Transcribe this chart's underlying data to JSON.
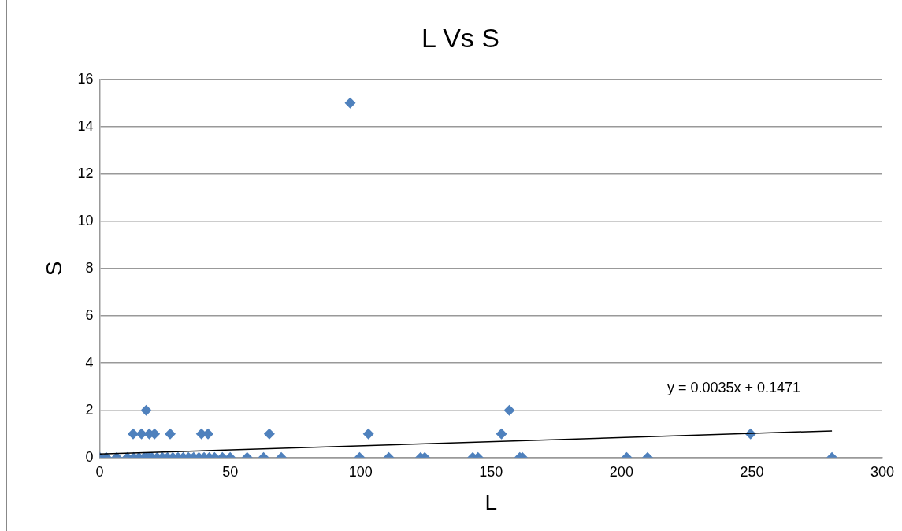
{
  "chart_data": {
    "type": "scatter",
    "title": "L Vs S",
    "xlabel": "L",
    "ylabel": "S",
    "xlim": [
      0,
      300
    ],
    "xticks": [
      0,
      50,
      100,
      150,
      200,
      250,
      300
    ],
    "ylim": [
      0,
      16
    ],
    "yticks": [
      0,
      2,
      4,
      6,
      8,
      10,
      12,
      14,
      16
    ],
    "grid": "y",
    "legend": false,
    "marker": "diamond",
    "series": [
      {
        "color": "#4f81bd",
        "x": [
          12.8,
          16,
          19,
          21,
          27,
          39,
          41.5,
          65,
          103,
          154,
          249.5,
          17.8,
          157,
          96,
          0,
          2.5,
          6.5,
          10.6,
          13,
          15,
          17,
          18,
          19,
          20,
          22,
          24,
          26,
          28,
          30,
          32,
          34,
          36,
          38,
          40,
          42,
          44,
          47,
          50,
          56.5,
          62.8,
          69.6,
          99.6,
          110.8,
          123,
          124.6,
          143,
          145,
          161,
          162,
          202,
          210,
          280.7
        ],
        "values": [
          1,
          1,
          1,
          1,
          1,
          1,
          1,
          1,
          1,
          1,
          1,
          2,
          2,
          15,
          0,
          0,
          0,
          0,
          0,
          0,
          0,
          0,
          0,
          0,
          0,
          0,
          0,
          0,
          0,
          0,
          0,
          0,
          0,
          0,
          0,
          0,
          0,
          0,
          0,
          0,
          0,
          0,
          0,
          0,
          0,
          0,
          0,
          0,
          0,
          0,
          0,
          0
        ]
      },
      {
        "type": "line",
        "color": "#000000",
        "marker": "none",
        "x": [
          0,
          280.7
        ],
        "values": [
          0.15,
          1.13
        ]
      }
    ],
    "annotations": [
      "y = 0.0035x + 0.1471"
    ]
  }
}
